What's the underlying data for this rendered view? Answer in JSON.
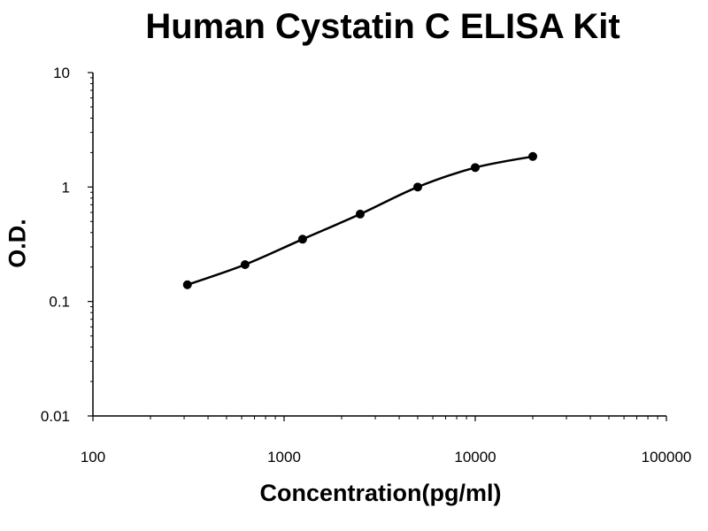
{
  "chart_data": {
    "type": "line",
    "title": "Human Cystatin C ELISA Kit",
    "xlabel": "Concentration(pg/ml)",
    "ylabel": "O.D.",
    "xscale": "log",
    "yscale": "log",
    "xlim": [
      100,
      100000
    ],
    "ylim": [
      0.01,
      10
    ],
    "xticks": [
      "100",
      "1000",
      "10000",
      "100000"
    ],
    "yticks": [
      "10",
      "1",
      "0.1",
      "0.01"
    ],
    "grid": false,
    "legend": "none",
    "series": [
      {
        "color": "#000000",
        "x": [
          312,
          625,
          1250,
          2500,
          5000,
          10000,
          20000
        ],
        "y": [
          0.14,
          0.21,
          0.35,
          0.58,
          1.0,
          1.48,
          1.85
        ]
      }
    ]
  }
}
